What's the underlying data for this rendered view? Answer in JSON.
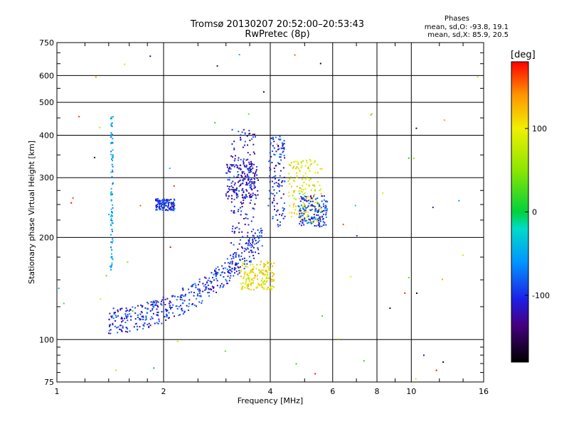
{
  "title": "Tromsø 20130207 20:52:00–20:53:43",
  "subtitle": "RwPretec (8p)",
  "phase_stats": {
    "heading": "Phases",
    "line_o": "mean, sd,O: -93.8, 19.1",
    "line_x": "mean, sd,X:  85.9, 20.5"
  },
  "colorbar": {
    "label": "[deg]",
    "ticks": [
      100,
      0,
      -100
    ],
    "range": [
      -180,
      180
    ]
  },
  "chart_data": {
    "type": "scatter",
    "xlabel": "Frequency [MHz]",
    "ylabel": "Stationary phase Virtual Height [km]",
    "xscale": "log",
    "yscale": "log",
    "xlim": [
      1,
      16
    ],
    "ylim": [
      75,
      750
    ],
    "xticks": [
      1,
      2,
      4,
      6,
      8,
      10,
      16
    ],
    "yticks": [
      75,
      100,
      200,
      300,
      400,
      500,
      600,
      750
    ],
    "grid": true,
    "color_encoding": "phase [deg], -180 (black) to 180 (red)",
    "clusters": [
      {
        "desc": "O-mode lower trace",
        "fmin": 1.4,
        "fmax": 3.8,
        "hmin": 110,
        "hmax": 190,
        "phase": -100
      },
      {
        "desc": "O-mode steep rise",
        "fmin": 3.1,
        "fmax": 3.65,
        "hmin": 190,
        "hmax": 420,
        "phase": -110
      },
      {
        "desc": "F-region band",
        "fmin": 3.0,
        "fmax": 3.7,
        "hmin": 260,
        "hmax": 330,
        "phase": -115
      },
      {
        "desc": "F-region near 4 MHz",
        "fmin": 3.95,
        "fmax": 4.4,
        "hmin": 215,
        "hmax": 400,
        "phase": -100
      },
      {
        "desc": "X-mode trace",
        "fmin": 4.5,
        "fmax": 5.6,
        "hmin": 220,
        "hmax": 340,
        "phase": 95
      },
      {
        "desc": "O-mode high",
        "fmin": 4.8,
        "fmax": 5.8,
        "hmin": 215,
        "hmax": 265,
        "phase": -95
      },
      {
        "desc": "X-mode lower",
        "fmin": 3.3,
        "fmax": 4.1,
        "hmin": 140,
        "hmax": 170,
        "phase": 100
      },
      {
        "desc": "Vertical column",
        "fmin": 1.42,
        "fmax": 1.44,
        "hmin": 160,
        "hmax": 460,
        "phase": -50
      },
      {
        "desc": "Patch near 2 MHz",
        "fmin": 1.9,
        "fmax": 2.15,
        "hmin": 240,
        "hmax": 260,
        "phase": -100
      }
    ]
  }
}
